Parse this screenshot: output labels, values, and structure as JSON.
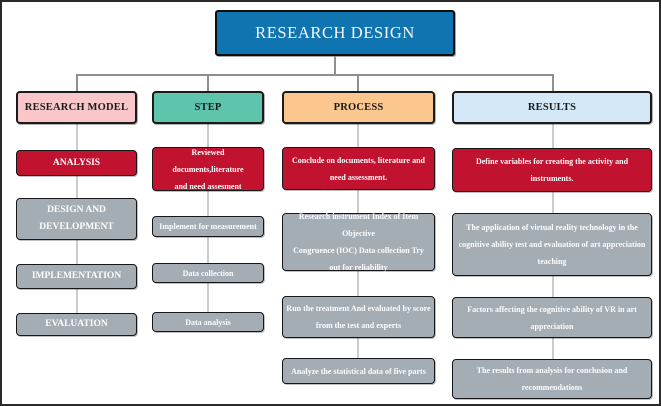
{
  "title": "RESEARCH DESIGN",
  "colors": {
    "title_bg": "#0f74b0",
    "red": "#c1122f",
    "gray": "#a5adb4",
    "pink": "#f9c7ca",
    "teal": "#5fc4ac",
    "orange": "#fbc78e",
    "lightblue": "#d5e8f8",
    "conn": "#8f8f8f",
    "spine": "#c9cdd0",
    "frame": "#2a2a2a"
  },
  "columns": [
    {
      "header": "RESEARCH MODEL",
      "items": [
        "ANALYSIS",
        "DESIGN AND\nDEVELOPMENT",
        "IMPLEMENTATION",
        "EVALUATION"
      ]
    },
    {
      "header": "STEP",
      "items": [
        "Reviewed documents,literature\nand need assesment",
        "Implement for measurement",
        "Data collection",
        "Data analysis"
      ]
    },
    {
      "header": "PROCESS",
      "items": [
        "Conclude on documents, literature and\nneed assessment.",
        "Research instrument Index of Item Objective\nCongruence (IOC) Data collection Try\nout for reliability",
        "Run the treatment And evaluated by score\nfrom the test and experts",
        "Analyze the statistical data of five parts"
      ]
    },
    {
      "header": "RESULTS",
      "items": [
        "Define variables for creating the activity and\ninstruments.",
        "The application of virtual reality technology in the\ncognitive ability test and evaluation of art appreciation\nteaching",
        "Factors affecting the cognitive ability of VR in art\nappreciation",
        "The results from analysis for conclusion and\nrecommendations"
      ]
    }
  ]
}
